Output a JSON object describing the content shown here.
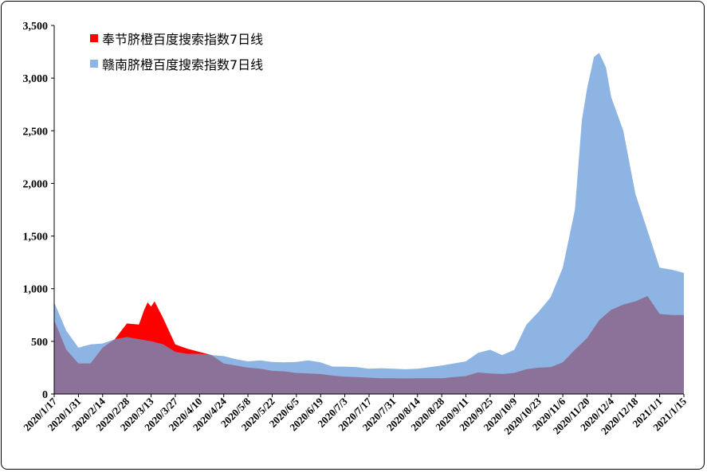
{
  "chart_data": {
    "type": "area",
    "title": "",
    "xlabel": "",
    "ylabel": "",
    "ylim": [
      0,
      3500
    ],
    "yticks": [
      0,
      500,
      1000,
      1500,
      2000,
      2500,
      3000,
      3500
    ],
    "ytick_labels": [
      "0",
      "500",
      "1,000",
      "1,500",
      "2,000",
      "2,500",
      "3,000",
      "3,500"
    ],
    "xtick_labels": [
      "2020/1/17",
      "2020/1/31",
      "2020/2/14",
      "2020/2/28",
      "2020/3/13",
      "2020/3/27",
      "2020/4/10",
      "2020/4/24",
      "2020/5/8",
      "2020/5/22",
      "2020/6/5",
      "2020/6/19",
      "2020/7/3",
      "2020/7/17",
      "2020/7/31",
      "2020/8/14",
      "2020/8/28",
      "2020/9/11",
      "2020/9/25",
      "2020/10/9",
      "2020/10/23",
      "2020/11/6",
      "2020/11/20",
      "2020/12/4",
      "2020/12/18",
      "2021/1/1",
      "2021/1/15"
    ],
    "legend_position": "top-left",
    "grid": false,
    "series": [
      {
        "name": "奉节脐橙百度搜索指数7日线",
        "color": "#ff0000",
        "points": [
          [
            "2020/1/17",
            700
          ],
          [
            "2020/1/24",
            420
          ],
          [
            "2020/1/31",
            290
          ],
          [
            "2020/2/7",
            290
          ],
          [
            "2020/2/14",
            440
          ],
          [
            "2020/2/21",
            520
          ],
          [
            "2020/2/28",
            670
          ],
          [
            "2020/3/6",
            660
          ],
          [
            "2020/3/9",
            800
          ],
          [
            "2020/3/11",
            870
          ],
          [
            "2020/3/13",
            830
          ],
          [
            "2020/3/15",
            880
          ],
          [
            "2020/3/20",
            720
          ],
          [
            "2020/3/27",
            470
          ],
          [
            "2020/4/3",
            430
          ],
          [
            "2020/4/10",
            400
          ],
          [
            "2020/4/17",
            370
          ],
          [
            "2020/4/24",
            290
          ],
          [
            "2020/5/1",
            270
          ],
          [
            "2020/5/8",
            250
          ],
          [
            "2020/5/15",
            240
          ],
          [
            "2020/5/22",
            220
          ],
          [
            "2020/5/29",
            215
          ],
          [
            "2020/6/5",
            200
          ],
          [
            "2020/6/12",
            195
          ],
          [
            "2020/6/19",
            190
          ],
          [
            "2020/6/26",
            175
          ],
          [
            "2020/7/3",
            165
          ],
          [
            "2020/7/10",
            160
          ],
          [
            "2020/7/17",
            155
          ],
          [
            "2020/7/24",
            150
          ],
          [
            "2020/7/31",
            150
          ],
          [
            "2020/8/7",
            148
          ],
          [
            "2020/8/14",
            150
          ],
          [
            "2020/8/21",
            150
          ],
          [
            "2020/8/28",
            150
          ],
          [
            "2020/9/4",
            160
          ],
          [
            "2020/9/11",
            170
          ],
          [
            "2020/9/18",
            205
          ],
          [
            "2020/9/25",
            195
          ],
          [
            "2020/10/2",
            190
          ],
          [
            "2020/10/9",
            200
          ],
          [
            "2020/10/16",
            235
          ],
          [
            "2020/10/23",
            250
          ],
          [
            "2020/10/30",
            255
          ],
          [
            "2020/11/6",
            300
          ],
          [
            "2020/11/13",
            420
          ],
          [
            "2020/11/20",
            530
          ],
          [
            "2020/11/27",
            700
          ],
          [
            "2020/12/4",
            800
          ],
          [
            "2020/12/11",
            850
          ],
          [
            "2020/12/18",
            880
          ],
          [
            "2020/12/25",
            930
          ],
          [
            "2021/1/1",
            760
          ],
          [
            "2021/1/8",
            750
          ],
          [
            "2021/1/15",
            750
          ]
        ]
      },
      {
        "name": "赣南脐橙百度搜索指数7日线",
        "color": "#8db4e2",
        "points": [
          [
            "2020/1/17",
            870
          ],
          [
            "2020/1/24",
            600
          ],
          [
            "2020/1/31",
            440
          ],
          [
            "2020/2/7",
            470
          ],
          [
            "2020/2/14",
            480
          ],
          [
            "2020/2/21",
            520
          ],
          [
            "2020/2/28",
            540
          ],
          [
            "2020/3/6",
            520
          ],
          [
            "2020/3/13",
            500
          ],
          [
            "2020/3/20",
            470
          ],
          [
            "2020/3/27",
            400
          ],
          [
            "2020/4/3",
            380
          ],
          [
            "2020/4/10",
            380
          ],
          [
            "2020/4/17",
            370
          ],
          [
            "2020/4/24",
            360
          ],
          [
            "2020/5/1",
            330
          ],
          [
            "2020/5/8",
            310
          ],
          [
            "2020/5/15",
            320
          ],
          [
            "2020/5/22",
            305
          ],
          [
            "2020/5/29",
            300
          ],
          [
            "2020/6/5",
            305
          ],
          [
            "2020/6/12",
            320
          ],
          [
            "2020/6/19",
            300
          ],
          [
            "2020/6/26",
            260
          ],
          [
            "2020/7/3",
            260
          ],
          [
            "2020/7/10",
            255
          ],
          [
            "2020/7/17",
            240
          ],
          [
            "2020/7/24",
            245
          ],
          [
            "2020/7/31",
            240
          ],
          [
            "2020/8/7",
            235
          ],
          [
            "2020/8/14",
            240
          ],
          [
            "2020/8/21",
            255
          ],
          [
            "2020/8/28",
            270
          ],
          [
            "2020/9/4",
            290
          ],
          [
            "2020/9/11",
            310
          ],
          [
            "2020/9/18",
            390
          ],
          [
            "2020/9/25",
            420
          ],
          [
            "2020/10/2",
            370
          ],
          [
            "2020/10/9",
            420
          ],
          [
            "2020/10/16",
            660
          ],
          [
            "2020/10/23",
            780
          ],
          [
            "2020/10/30",
            920
          ],
          [
            "2020/11/6",
            1200
          ],
          [
            "2020/11/13",
            1750
          ],
          [
            "2020/11/17",
            2600
          ],
          [
            "2020/11/20",
            2900
          ],
          [
            "2020/11/24",
            3200
          ],
          [
            "2020/11/27",
            3240
          ],
          [
            "2020/12/1",
            3100
          ],
          [
            "2020/12/4",
            2820
          ],
          [
            "2020/12/11",
            2500
          ],
          [
            "2020/12/18",
            1900
          ],
          [
            "2020/12/25",
            1550
          ],
          [
            "2021/1/1",
            1200
          ],
          [
            "2021/1/8",
            1180
          ],
          [
            "2021/1/15",
            1150
          ]
        ]
      }
    ]
  }
}
